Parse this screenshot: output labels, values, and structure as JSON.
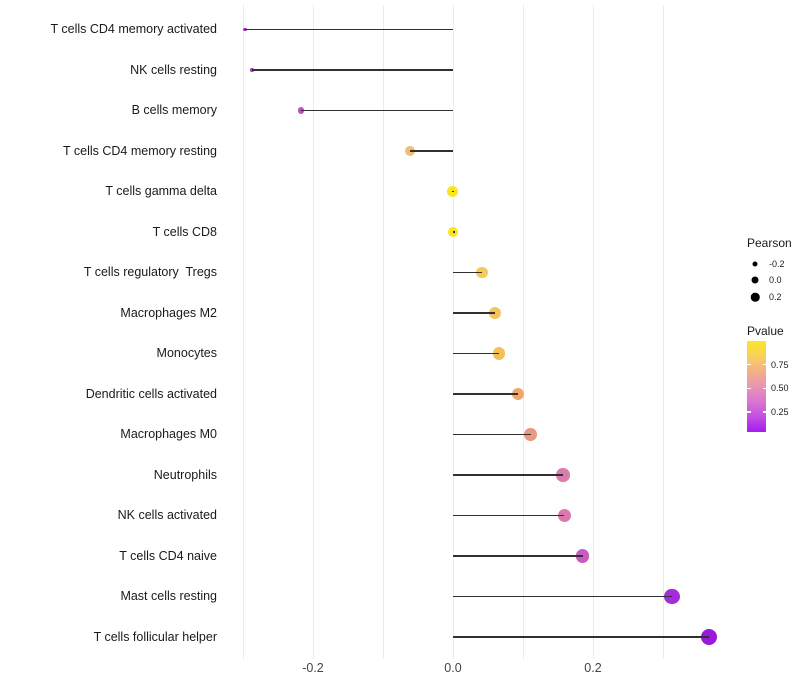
{
  "chart_data": {
    "type": "lollipop",
    "orientation": "horizontal",
    "title": "",
    "xlabel": "",
    "ylabel": "",
    "grid": "vertical-only",
    "legend_position": "right",
    "x_axis": {
      "tick_values": [
        -0.2,
        0.0,
        0.2
      ],
      "tick_labels": [
        "-0.2",
        "0.0",
        "0.2"
      ],
      "gridline_values": [
        -0.3,
        -0.2,
        -0.1,
        0.0,
        0.1,
        0.2,
        0.3
      ],
      "range": [
        -0.335,
        0.405
      ]
    },
    "points": [
      {
        "label": "T cells CD4 memory activated",
        "pearson": -0.297,
        "color": "#9D2EC1"
      },
      {
        "label": "NK cells resting",
        "pearson": -0.287,
        "color": "#A636C7"
      },
      {
        "label": "B cells memory",
        "pearson": -0.217,
        "color": "#BC4EC5"
      },
      {
        "label": "T cells CD4 memory resting",
        "pearson": -0.061,
        "color": "#F2BE74"
      },
      {
        "label": "T cells gamma delta",
        "pearson": -0.001,
        "color": "#FBE51F"
      },
      {
        "label": "T cells CD8",
        "pearson": 0.0,
        "color": "#FBE51F"
      },
      {
        "label": "T cells regulatory  Tregs",
        "pearson": 0.041,
        "color": "#F5CB5A"
      },
      {
        "label": "Macrophages M2",
        "pearson": 0.06,
        "color": "#F4C35E"
      },
      {
        "label": "Monocytes",
        "pearson": 0.066,
        "color": "#F3C05C"
      },
      {
        "label": "Dendritic cells activated",
        "pearson": 0.093,
        "color": "#EFA76C"
      },
      {
        "label": "Macrophages M0",
        "pearson": 0.111,
        "color": "#EA987F"
      },
      {
        "label": "Neutrophils",
        "pearson": 0.157,
        "color": "#DC7BAE"
      },
      {
        "label": "NK cells activated",
        "pearson": 0.159,
        "color": "#DB79AE"
      },
      {
        "label": "T cells CD4 naive",
        "pearson": 0.185,
        "color": "#C95CC0"
      },
      {
        "label": "Mast cells resting",
        "pearson": 0.313,
        "color": "#A42CD9"
      },
      {
        "label": "T cells follicular helper",
        "pearson": 0.365,
        "color": "#9A17DC"
      }
    ],
    "size_encoding": {
      "aesthetic": "Pearson",
      "legend_values": [
        -0.2,
        0.0,
        0.2
      ]
    },
    "color_encoding": {
      "aesthetic": "Pvalue",
      "colorbar_tick_values": [
        0.75,
        0.5,
        0.25
      ],
      "colorbar_value_range_bottom_to_top": [
        0.04,
        1.0
      ],
      "gradient_stops_top_to_bottom": [
        "#FBE723",
        "#F8D15C",
        "#F3B089",
        "#E994B3",
        "#DA76D0",
        "#C14FE3",
        "#A61CEF"
      ]
    }
  },
  "legend": {
    "pearson": {
      "title": "Pearson",
      "items": [
        {
          "label": "-0.2"
        },
        {
          "label": "0.0"
        },
        {
          "label": "0.2"
        }
      ]
    },
    "pvalue": {
      "title": "Pvalue",
      "ticks": [
        {
          "label": "0.75"
        },
        {
          "label": "0.50"
        },
        {
          "label": "0.25"
        }
      ]
    }
  },
  "colors": {
    "background": "#FFFFFF",
    "stem": "#303030",
    "gridline": "#EBEBEB",
    "axis_text": "#454545",
    "category_text": "#1A1A1A",
    "legend_dot": "#000000"
  }
}
